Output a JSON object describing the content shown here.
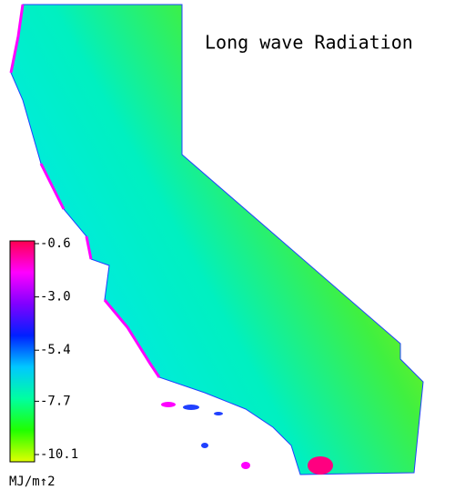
{
  "map": {
    "title": "Long wave Radiation",
    "colorbar": {
      "ticks": [
        -0.6,
        {
          "value": -3,
          "label": "-3.0"
        },
        -5.4,
        -7.7,
        -10.1
      ],
      "unit_label": "MJ/m↑2",
      "colors": [
        "#ff0050",
        "#ff00ff",
        "#8000ff",
        "#0020ff",
        "#00c8ff",
        "#00ffa0",
        "#20ff00",
        "#e0ff00"
      ]
    }
  }
}
